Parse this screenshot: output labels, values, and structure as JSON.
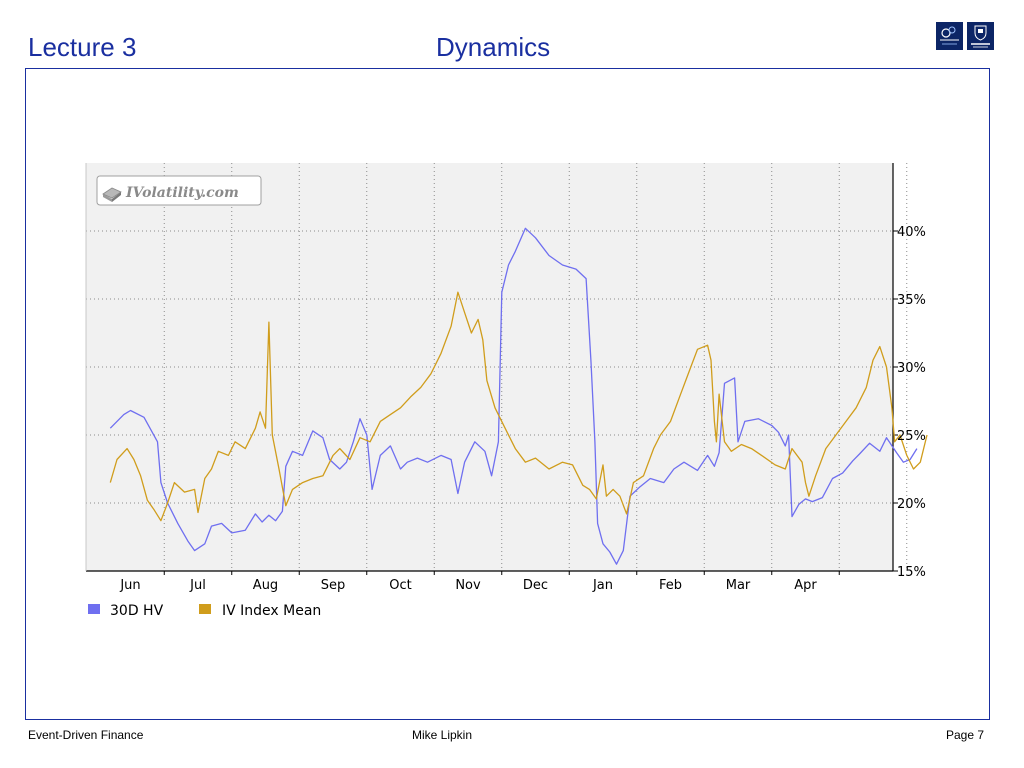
{
  "header": {
    "lecture": "Lecture 3",
    "title": "Dynamics"
  },
  "footer": {
    "left": "Event-Driven Finance",
    "center": "Mike Lipkin",
    "right": "Page 7"
  },
  "colors": {
    "heading": "#1a2fa0",
    "hv": "#6f6ff0",
    "iv": "#d09d1c",
    "plot_bg": "#f1f1f1",
    "logo": "#0c2566"
  },
  "icons": {
    "logos": [
      "oxford-man-institute-logo",
      "university-of-oxford-logo"
    ],
    "watermark": "ivolatility-logo"
  },
  "chart_data": {
    "type": "line",
    "watermark": "IVolatility.com",
    "x_categories": [
      "Jun",
      "Jul",
      "Aug",
      "Sep",
      "Oct",
      "Nov",
      "Dec",
      "Jan",
      "Feb",
      "Mar",
      "Apr"
    ],
    "x_range": [
      0,
      12
    ],
    "y_ticks": [
      15,
      20,
      25,
      30,
      35,
      40
    ],
    "y_tick_labels": [
      "15%",
      "20%",
      "25%",
      "30%",
      "35%",
      "40%"
    ],
    "ylim": [
      15,
      45
    ],
    "grid": true,
    "y_axis_position": "right",
    "legend_position": "bottom-left",
    "series": [
      {
        "name": "30D HV",
        "color": "#6f6ff0",
        "points": [
          [
            -0.3,
            25.5
          ],
          [
            -0.1,
            26.5
          ],
          [
            0.0,
            26.8
          ],
          [
            0.2,
            26.3
          ],
          [
            0.4,
            24.5
          ],
          [
            0.45,
            21.5
          ],
          [
            0.55,
            20.0
          ],
          [
            0.7,
            18.5
          ],
          [
            0.85,
            17.2
          ],
          [
            0.95,
            16.5
          ],
          [
            1.1,
            17.0
          ],
          [
            1.2,
            18.3
          ],
          [
            1.35,
            18.5
          ],
          [
            1.5,
            17.8
          ],
          [
            1.7,
            18.0
          ],
          [
            1.85,
            19.2
          ],
          [
            1.95,
            18.6
          ],
          [
            2.05,
            19.1
          ],
          [
            2.15,
            18.7
          ],
          [
            2.25,
            19.4
          ],
          [
            2.3,
            22.7
          ],
          [
            2.4,
            23.8
          ],
          [
            2.55,
            23.5
          ],
          [
            2.7,
            25.3
          ],
          [
            2.85,
            24.8
          ],
          [
            2.95,
            23.2
          ],
          [
            3.1,
            22.5
          ],
          [
            3.2,
            23.0
          ],
          [
            3.3,
            24.5
          ],
          [
            3.4,
            26.2
          ],
          [
            3.5,
            25.0
          ],
          [
            3.58,
            21.0
          ],
          [
            3.7,
            23.5
          ],
          [
            3.85,
            24.2
          ],
          [
            4.0,
            22.5
          ],
          [
            4.1,
            23.0
          ],
          [
            4.25,
            23.3
          ],
          [
            4.4,
            23.0
          ],
          [
            4.6,
            23.5
          ],
          [
            4.75,
            23.2
          ],
          [
            4.85,
            20.7
          ],
          [
            4.95,
            23.0
          ],
          [
            5.1,
            24.5
          ],
          [
            5.25,
            23.8
          ],
          [
            5.35,
            22.0
          ],
          [
            5.45,
            24.5
          ],
          [
            5.5,
            35.5
          ],
          [
            5.6,
            37.5
          ],
          [
            5.7,
            38.5
          ],
          [
            5.85,
            40.2
          ],
          [
            6.0,
            39.5
          ],
          [
            6.2,
            38.2
          ],
          [
            6.4,
            37.5
          ],
          [
            6.6,
            37.2
          ],
          [
            6.75,
            36.5
          ],
          [
            6.82,
            30.5
          ],
          [
            6.88,
            24.5
          ],
          [
            6.92,
            18.5
          ],
          [
            7.0,
            17.0
          ],
          [
            7.1,
            16.4
          ],
          [
            7.2,
            15.5
          ],
          [
            7.3,
            16.5
          ],
          [
            7.4,
            20.5
          ],
          [
            7.55,
            21.2
          ],
          [
            7.7,
            21.8
          ],
          [
            7.9,
            21.5
          ],
          [
            8.05,
            22.5
          ],
          [
            8.2,
            23.0
          ],
          [
            8.4,
            22.4
          ],
          [
            8.55,
            23.5
          ],
          [
            8.65,
            22.7
          ],
          [
            8.72,
            23.7
          ],
          [
            8.8,
            28.8
          ],
          [
            8.95,
            29.2
          ],
          [
            9.0,
            24.5
          ],
          [
            9.1,
            26.0
          ],
          [
            9.3,
            26.2
          ],
          [
            9.5,
            25.7
          ],
          [
            9.6,
            25.2
          ],
          [
            9.7,
            24.2
          ],
          [
            9.75,
            25.0
          ],
          [
            9.8,
            19.0
          ],
          [
            9.9,
            19.9
          ],
          [
            10.0,
            20.3
          ],
          [
            10.1,
            20.1
          ],
          [
            10.25,
            20.4
          ],
          [
            10.4,
            21.8
          ],
          [
            10.55,
            22.2
          ],
          [
            10.7,
            23.1
          ],
          [
            10.8,
            23.6
          ],
          [
            10.95,
            24.4
          ],
          [
            11.1,
            23.8
          ],
          [
            11.2,
            24.8
          ],
          [
            11.35,
            23.7
          ],
          [
            11.45,
            23.0
          ],
          [
            11.55,
            23.2
          ],
          [
            11.65,
            24.0
          ]
        ]
      },
      {
        "name": "IV Index Mean",
        "color": "#d09d1c",
        "points": [
          [
            -0.3,
            21.5
          ],
          [
            -0.2,
            23.2
          ],
          [
            -0.05,
            24.0
          ],
          [
            0.05,
            23.2
          ],
          [
            0.15,
            22.0
          ],
          [
            0.25,
            20.2
          ],
          [
            0.35,
            19.5
          ],
          [
            0.45,
            18.7
          ],
          [
            0.55,
            20.0
          ],
          [
            0.65,
            21.5
          ],
          [
            0.8,
            20.8
          ],
          [
            0.95,
            21.0
          ],
          [
            1.0,
            19.3
          ],
          [
            1.1,
            21.8
          ],
          [
            1.2,
            22.5
          ],
          [
            1.3,
            23.8
          ],
          [
            1.45,
            23.5
          ],
          [
            1.55,
            24.5
          ],
          [
            1.7,
            24.0
          ],
          [
            1.85,
            25.5
          ],
          [
            1.92,
            26.7
          ],
          [
            2.0,
            25.5
          ],
          [
            2.05,
            33.3
          ],
          [
            2.1,
            25.0
          ],
          [
            2.2,
            22.5
          ],
          [
            2.3,
            19.8
          ],
          [
            2.4,
            21.0
          ],
          [
            2.55,
            21.5
          ],
          [
            2.7,
            21.8
          ],
          [
            2.85,
            22.0
          ],
          [
            3.0,
            23.5
          ],
          [
            3.1,
            24.0
          ],
          [
            3.25,
            23.2
          ],
          [
            3.4,
            24.8
          ],
          [
            3.55,
            24.5
          ],
          [
            3.7,
            26.0
          ],
          [
            3.85,
            26.5
          ],
          [
            4.0,
            27.0
          ],
          [
            4.15,
            27.8
          ],
          [
            4.3,
            28.5
          ],
          [
            4.45,
            29.5
          ],
          [
            4.6,
            31.0
          ],
          [
            4.75,
            33.0
          ],
          [
            4.85,
            35.5
          ],
          [
            4.95,
            34.0
          ],
          [
            5.05,
            32.5
          ],
          [
            5.15,
            33.5
          ],
          [
            5.22,
            32.0
          ],
          [
            5.28,
            29.0
          ],
          [
            5.4,
            27.0
          ],
          [
            5.55,
            25.5
          ],
          [
            5.7,
            24.0
          ],
          [
            5.85,
            23.0
          ],
          [
            6.0,
            23.3
          ],
          [
            6.2,
            22.5
          ],
          [
            6.4,
            23.0
          ],
          [
            6.55,
            22.8
          ],
          [
            6.7,
            21.3
          ],
          [
            6.8,
            21.0
          ],
          [
            6.9,
            20.3
          ],
          [
            7.0,
            22.8
          ],
          [
            7.05,
            20.5
          ],
          [
            7.15,
            21.0
          ],
          [
            7.25,
            20.5
          ],
          [
            7.35,
            19.2
          ],
          [
            7.45,
            21.5
          ],
          [
            7.6,
            22.0
          ],
          [
            7.75,
            24.0
          ],
          [
            7.85,
            25.0
          ],
          [
            8.0,
            26.0
          ],
          [
            8.15,
            28.0
          ],
          [
            8.3,
            30.0
          ],
          [
            8.4,
            31.3
          ],
          [
            8.55,
            31.6
          ],
          [
            8.6,
            30.5
          ],
          [
            8.65,
            26.0
          ],
          [
            8.68,
            24.5
          ],
          [
            8.72,
            28.0
          ],
          [
            8.8,
            24.5
          ],
          [
            8.9,
            23.8
          ],
          [
            9.05,
            24.3
          ],
          [
            9.2,
            24.0
          ],
          [
            9.35,
            23.5
          ],
          [
            9.55,
            22.8
          ],
          [
            9.7,
            22.5
          ],
          [
            9.8,
            24.0
          ],
          [
            9.95,
            23.0
          ],
          [
            10.0,
            21.5
          ],
          [
            10.05,
            20.5
          ],
          [
            10.15,
            22.0
          ],
          [
            10.3,
            24.0
          ],
          [
            10.45,
            25.0
          ],
          [
            10.6,
            26.0
          ],
          [
            10.75,
            27.0
          ],
          [
            10.9,
            28.5
          ],
          [
            11.0,
            30.5
          ],
          [
            11.1,
            31.5
          ],
          [
            11.2,
            30.0
          ],
          [
            11.28,
            27.0
          ],
          [
            11.32,
            24.5
          ],
          [
            11.4,
            25.0
          ],
          [
            11.5,
            23.5
          ],
          [
            11.6,
            22.5
          ],
          [
            11.7,
            23.0
          ],
          [
            11.8,
            25.0
          ]
        ]
      }
    ]
  }
}
